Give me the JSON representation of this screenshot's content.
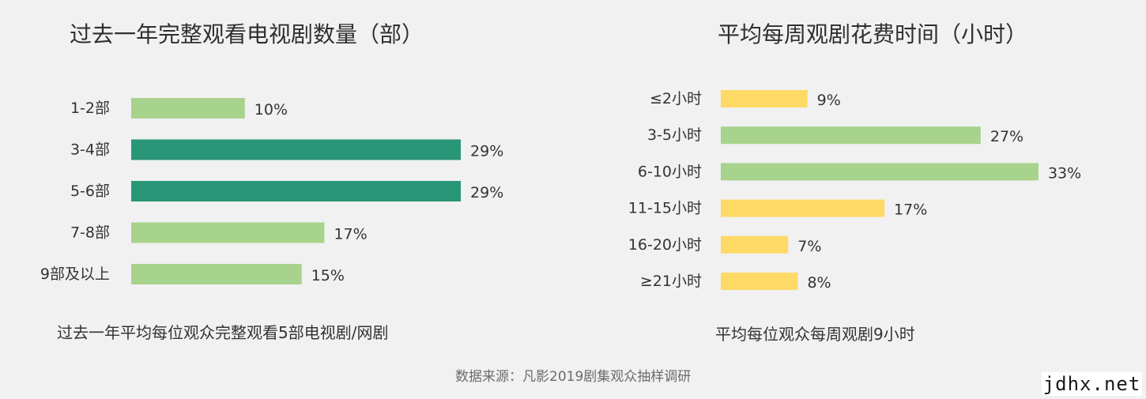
{
  "chart_data": [
    {
      "type": "bar",
      "orientation": "horizontal",
      "title": "过去一年完整观看电视剧数量（部）",
      "subtitle": "过去一年平均每位观众完整观看5部电视剧/网剧",
      "categories": [
        "1-2部",
        "3-4部",
        "5-6部",
        "7-8部",
        "9部及以上"
      ],
      "values": [
        10,
        29,
        29,
        17,
        15
      ],
      "value_labels": [
        "10%",
        "29%",
        "29%",
        "17%",
        "15%"
      ],
      "colors": [
        "#a8d38d",
        "#2a9678",
        "#2a9678",
        "#a8d38d",
        "#a8d38d"
      ],
      "grid": false
    },
    {
      "type": "bar",
      "orientation": "horizontal",
      "title": "平均每周观剧花费时间（小时）",
      "subtitle": "平均每位观众每周观剧9小时",
      "categories": [
        "≤2小时",
        "3-5小时",
        "6-10小时",
        "11-15小时",
        "16-20小时",
        "≥21小时"
      ],
      "values": [
        9,
        27,
        33,
        17,
        7,
        8
      ],
      "value_labels": [
        "9%",
        "27%",
        "33%",
        "17%",
        "7%",
        "8%"
      ],
      "colors": [
        "#fed966",
        "#a8d38d",
        "#a8d38d",
        "#fed966",
        "#fed966",
        "#fed966"
      ],
      "grid": false
    }
  ],
  "source": "数据来源：凡影2019剧集观众抽样调研",
  "watermark": "jdhx.net"
}
